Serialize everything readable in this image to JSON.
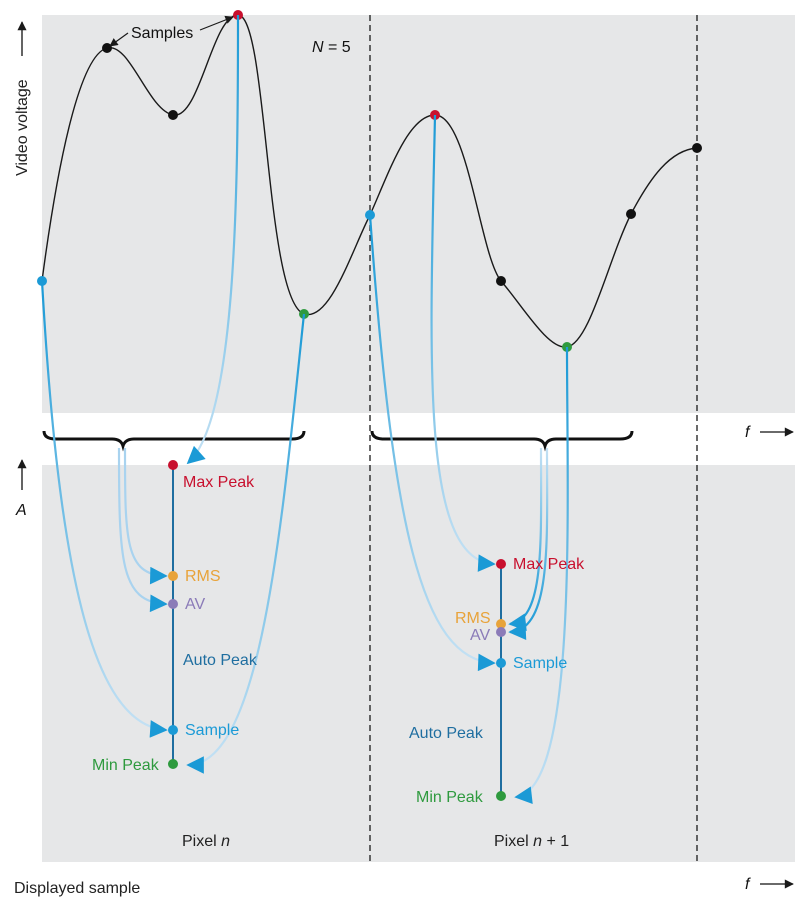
{
  "colors": {
    "panel_bg": "#e6e7e8",
    "curve": "#1a1a1a",
    "trace_blue": "#1b9ad6",
    "trace_light": "#a9d3ef",
    "max_red": "#c8102e",
    "min_green": "#2e9a3e",
    "rms_orange": "#e8a33a",
    "av_purple": "#8b7bb8",
    "sample_cyan": "#1b9ad6",
    "auto_blue": "#1f6ea0",
    "black": "#000000"
  },
  "labels": {
    "y_axis_top": "Video voltage",
    "samples": "Samples",
    "n_equals": "N = 5",
    "n_var": "N",
    "n_eq": " = 5",
    "f_axis_1": "f",
    "f_axis_2": "f",
    "a_axis": "A",
    "displayed_sample": "Displayed sample",
    "pixel_n_text": "Pixel ",
    "pixel_n_var": "n",
    "pixel_n1_text": "Pixel ",
    "pixel_n1_var": "n",
    "pixel_n1_suffix": " + 1"
  },
  "pixel_n": {
    "max_peak": "Max Peak",
    "rms": "RMS",
    "av": "AV",
    "auto_peak": "Auto Peak",
    "sample": "Sample",
    "min_peak": "Min Peak"
  },
  "pixel_n1": {
    "max_peak": "Max Peak",
    "rms": "RMS",
    "av": "AV",
    "sample": "Sample",
    "auto_peak": "Auto Peak",
    "min_peak": "Min Peak"
  }
}
